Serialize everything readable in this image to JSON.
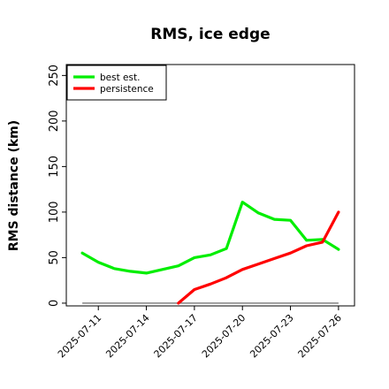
{
  "chart_data": {
    "type": "line",
    "title": "RMS, ice edge",
    "xlabel": "",
    "ylabel": "RMS distance (km)",
    "x_start": "2025-07-10",
    "x": [
      "2025-07-10",
      "2025-07-11",
      "2025-07-12",
      "2025-07-13",
      "2025-07-14",
      "2025-07-15",
      "2025-07-16",
      "2025-07-17",
      "2025-07-18",
      "2025-07-19",
      "2025-07-20",
      "2025-07-21",
      "2025-07-22",
      "2025-07-23",
      "2025-07-24",
      "2025-07-25",
      "2025-07-26"
    ],
    "xlim": [
      "2025-07-09",
      "2025-07-27"
    ],
    "xticks": [
      "2025-07-11",
      "2025-07-14",
      "2025-07-17",
      "2025-07-20",
      "2025-07-23",
      "2025-07-26"
    ],
    "ylim": [
      -3,
      262
    ],
    "yticks": [
      0,
      50,
      100,
      150,
      200,
      250
    ],
    "grid": false,
    "legend_position": "top-left",
    "series": [
      {
        "name": "best est.",
        "color": "#00ee00",
        "values": [
          55,
          45,
          38,
          35,
          33,
          37,
          41,
          50,
          53,
          60,
          111,
          99,
          92,
          91,
          69,
          70,
          59
        ]
      },
      {
        "name": "persistence",
        "color": "#ff0000",
        "values": [
          null,
          null,
          null,
          null,
          null,
          null,
          0,
          15,
          21,
          28,
          37,
          43,
          49,
          55,
          63,
          67,
          100
        ]
      }
    ],
    "baseline": {
      "value": 0,
      "color": "#808080"
    }
  }
}
